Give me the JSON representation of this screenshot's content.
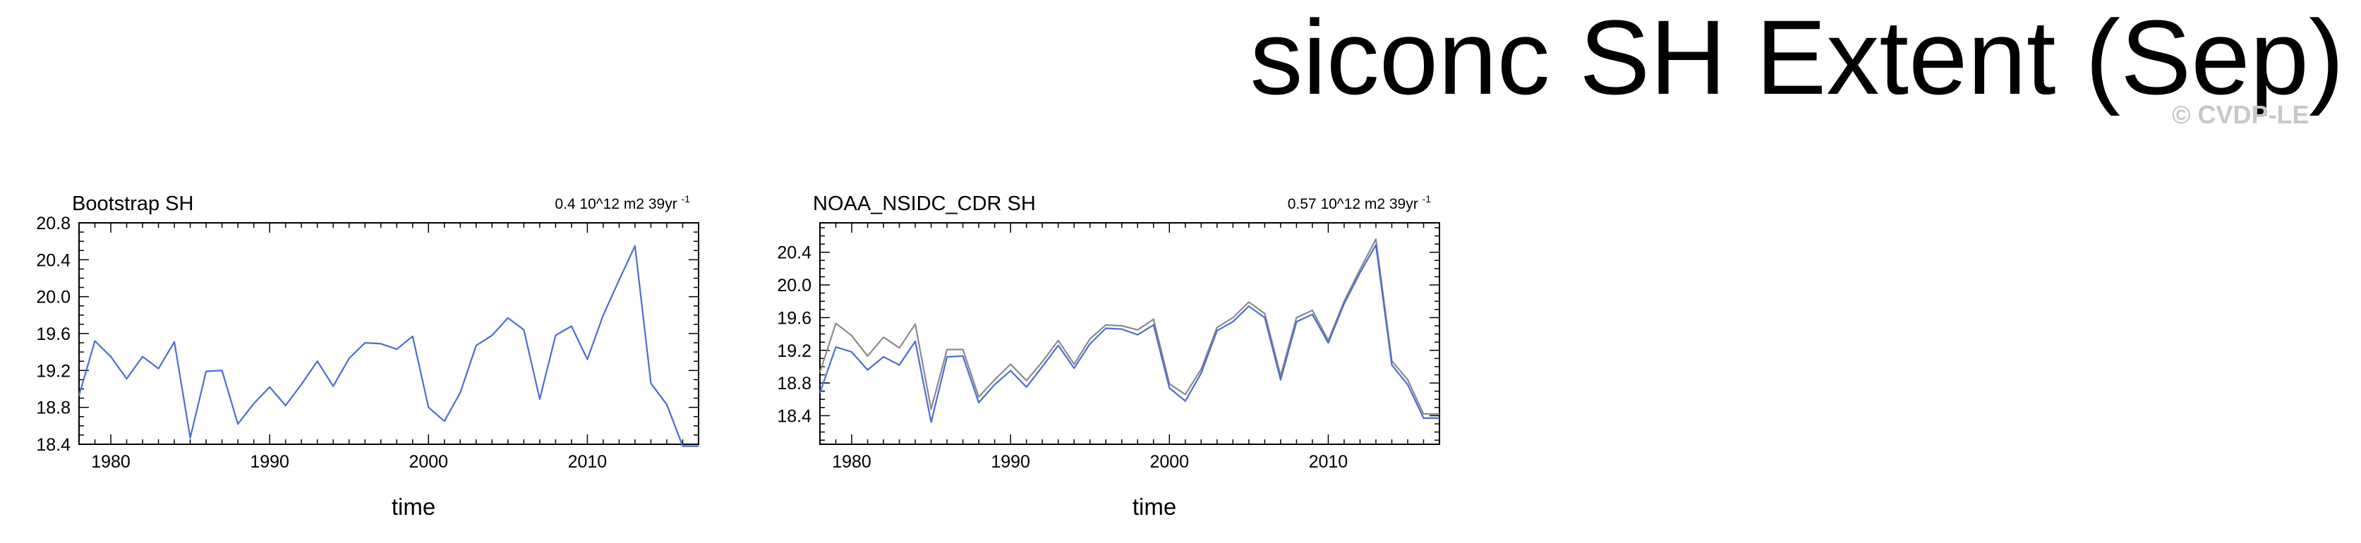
{
  "title": "siconc SH Extent (Sep)",
  "watermark": "© CVDP-LE",
  "chart_data": [
    {
      "type": "line",
      "title": "Bootstrap SH",
      "annotation": "0.4 10^12 m2 39yr",
      "annotation_sup": "-1",
      "xlabel": "time",
      "ylabel": "",
      "xlim": [
        1978,
        2017
      ],
      "ylim": [
        18.4,
        20.8
      ],
      "xticks": [
        1980,
        1990,
        2000,
        2010
      ],
      "yticks": [
        18.4,
        18.8,
        19.2,
        19.6,
        20.0,
        20.4,
        20.8
      ],
      "ytick_labels": [
        "18.4",
        "18.8",
        "19.2",
        "19.6",
        "20.0",
        "20.4",
        "20.8"
      ],
      "x": [
        1978,
        1979,
        1980,
        1981,
        1982,
        1983,
        1984,
        1985,
        1986,
        1987,
        1988,
        1989,
        1990,
        1991,
        1992,
        1993,
        1994,
        1995,
        1996,
        1997,
        1998,
        1999,
        2000,
        2001,
        2002,
        2003,
        2004,
        2005,
        2006,
        2007,
        2008,
        2009,
        2010,
        2011,
        2012,
        2013,
        2014,
        2015,
        2016,
        2017
      ],
      "series": [
        {
          "color": "#4a6ed6",
          "values": [
            18.93,
            19.52,
            19.35,
            19.11,
            19.35,
            19.22,
            19.51,
            18.47,
            19.19,
            19.2,
            18.62,
            18.84,
            19.02,
            18.82,
            19.05,
            19.3,
            19.03,
            19.33,
            19.5,
            19.49,
            19.43,
            19.57,
            18.8,
            18.65,
            18.96,
            19.47,
            19.58,
            19.77,
            19.64,
            18.89,
            19.58,
            19.68,
            19.32,
            19.8,
            20.18,
            20.55,
            19.06,
            18.83,
            18.38,
            18.38
          ]
        }
      ]
    },
    {
      "type": "line",
      "title": "NOAA_NSIDC_CDR SH",
      "annotation": "0.57 10^12 m2 39yr",
      "annotation_sup": "-1",
      "xlabel": "time",
      "ylabel": "",
      "xlim": [
        1978,
        2017
      ],
      "ylim": [
        18.05,
        20.76
      ],
      "xticks": [
        1980,
        1990,
        2000,
        2010
      ],
      "yticks": [
        18.4,
        18.8,
        19.2,
        19.6,
        20.0,
        20.4
      ],
      "ytick_labels": [
        "18.4",
        "18.8",
        "19.2",
        "19.6",
        "20.0",
        "20.4"
      ],
      "x": [
        1978,
        1979,
        1980,
        1981,
        1982,
        1983,
        1984,
        1985,
        1986,
        1987,
        1988,
        1989,
        1990,
        1991,
        1992,
        1993,
        1994,
        1995,
        1996,
        1997,
        1998,
        1999,
        2000,
        2001,
        2002,
        2003,
        2004,
        2005,
        2006,
        2007,
        2008,
        2009,
        2010,
        2011,
        2012,
        2013,
        2014,
        2015,
        2016,
        2017
      ],
      "series": [
        {
          "color": "#8a8a8a",
          "values": [
            18.93,
            19.53,
            19.38,
            19.13,
            19.36,
            19.23,
            19.52,
            18.48,
            19.21,
            19.21,
            18.63,
            18.84,
            19.03,
            18.83,
            19.06,
            19.32,
            19.03,
            19.34,
            19.51,
            19.5,
            19.45,
            19.58,
            18.79,
            18.66,
            18.97,
            19.48,
            19.6,
            19.79,
            19.65,
            18.89,
            19.6,
            19.69,
            19.32,
            19.8,
            20.19,
            20.56,
            19.07,
            18.84,
            18.42,
            18.42
          ]
        },
        {
          "color": "#4a6ed6",
          "values": [
            18.68,
            19.24,
            19.18,
            18.96,
            19.12,
            19.02,
            19.31,
            18.32,
            19.12,
            19.13,
            18.56,
            18.78,
            18.95,
            18.75,
            19.0,
            19.26,
            18.98,
            19.28,
            19.47,
            19.46,
            19.39,
            19.51,
            18.74,
            18.58,
            18.92,
            19.44,
            19.55,
            19.74,
            19.6,
            18.84,
            19.55,
            19.64,
            19.29,
            19.77,
            20.15,
            20.49,
            19.02,
            18.78,
            18.37,
            18.37
          ]
        }
      ]
    }
  ]
}
